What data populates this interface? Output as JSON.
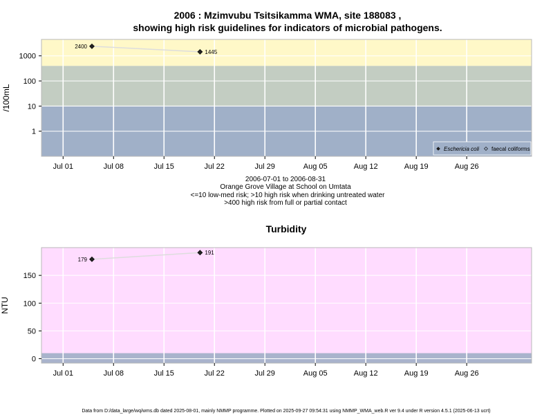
{
  "chart_data": [
    {
      "type": "line",
      "title_line1": "2006 : Mzimvubu Tsitsikamma WMA, site 188083 ,",
      "title_line2": "showing high risk guidelines for indicators of microbial pathogens.",
      "ylabel": "/100mL",
      "y_scale": "log",
      "y_ticks": [
        "1",
        "10",
        "100",
        "1000"
      ],
      "x_ticks": [
        "Jul 01",
        "Jul 08",
        "Jul 15",
        "Jul 22",
        "Jul 29",
        "Aug 05",
        "Aug 12",
        "Aug 19",
        "Aug 26"
      ],
      "x_tick_dates": [
        "2006-07-01",
        "2006-07-08",
        "2006-07-15",
        "2006-07-22",
        "2006-07-29",
        "2006-08-05",
        "2006-08-12",
        "2006-08-19",
        "2006-08-26"
      ],
      "xlim": [
        "2006-06-28",
        "2006-09-04"
      ],
      "ylim": [
        0.1,
        4500
      ],
      "bands": [
        {
          "from": 0.1,
          "to": 10,
          "color": "#a0b0c8"
        },
        {
          "from": 10,
          "to": 400,
          "color": "#c3cdc2"
        },
        {
          "from": 400,
          "to": 4500,
          "color": "#fff8c8"
        }
      ],
      "series": [
        {
          "name": "Eschericia coli",
          "marker": "filled-diamond",
          "points": [
            {
              "x": "2006-07-05",
              "y": 2400,
              "label": "2400"
            },
            {
              "x": "2006-07-20",
              "y": 1445,
              "label": "1445"
            }
          ]
        },
        {
          "name": "faecal coliforms",
          "marker": "open-diamond",
          "points": []
        }
      ],
      "legend_position": "bottom-right",
      "grid": true,
      "subtitle_lines": [
        "2006-07-01 to 2006-08-31",
        "Orange Grove Village at School on Umtata",
        "<=10 low-med risk; >10 high risk when drinking untreated water",
        ">400 high risk from full or partial contact"
      ]
    },
    {
      "type": "line",
      "title": "Turbidity",
      "ylabel": "NTU",
      "y_scale": "linear",
      "y_ticks": [
        "0",
        "50",
        "100",
        "150"
      ],
      "y_tick_values": [
        0,
        50,
        100,
        150
      ],
      "x_ticks": [
        "Jul 01",
        "Jul 08",
        "Jul 15",
        "Jul 22",
        "Jul 29",
        "Aug 05",
        "Aug 12",
        "Aug 19",
        "Aug 26"
      ],
      "x_tick_dates": [
        "2006-07-01",
        "2006-07-08",
        "2006-07-15",
        "2006-07-22",
        "2006-07-29",
        "2006-08-05",
        "2006-08-12",
        "2006-08-19",
        "2006-08-26"
      ],
      "xlim": [
        "2006-06-28",
        "2006-09-04"
      ],
      "ylim": [
        -8,
        200
      ],
      "bands": [
        {
          "from": -8,
          "to": 10,
          "color": "#a9b3cc"
        },
        {
          "from": 10,
          "to": 200,
          "color": "#ffdcff"
        }
      ],
      "series": [
        {
          "name": "Turbidity",
          "points": [
            {
              "x": "2006-07-05",
              "y": 179,
              "label": "179"
            },
            {
              "x": "2006-07-20",
              "y": 191,
              "label": "191"
            }
          ]
        }
      ],
      "grid": true
    }
  ],
  "footer": "Data from D:/data_large/wq/wms.db dated 2025-08-01, mainly NMMP programme. Plotted on 2025-09-27 09:54:31 using NMMP_WMA_web.R ver 9.4 under R version 4.5.1 (2025-06-13 ucrt)"
}
